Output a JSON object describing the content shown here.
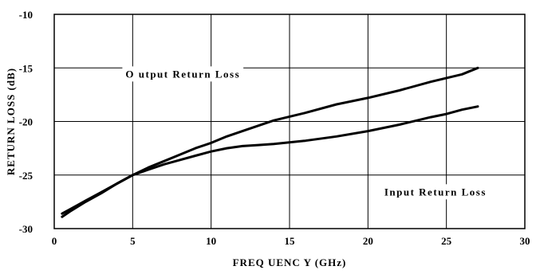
{
  "chart_data": {
    "type": "line",
    "title": "",
    "xlabel": "FREQ UENC Y (GHz)",
    "ylabel": "RETURN LOSS (dB)",
    "xlim": [
      0,
      30
    ],
    "ylim": [
      -30,
      -10
    ],
    "xticks": [
      0,
      5,
      10,
      15,
      20,
      25,
      30
    ],
    "yticks": [
      -30,
      -25,
      -20,
      -15,
      -10
    ],
    "xtick_labels": [
      "0",
      "5",
      "10",
      "15",
      "20",
      "25",
      "30"
    ],
    "ytick_labels": [
      "-30",
      "-25",
      "-20",
      "-15",
      "-10"
    ],
    "grid": true,
    "legend": "none",
    "line_color": "#000000",
    "series": [
      {
        "name": "Output Return Loss",
        "x": [
          0.5,
          1,
          2,
          3,
          4,
          5,
          6,
          7,
          8,
          9,
          10,
          11,
          12,
          14,
          16,
          18,
          20,
          22,
          24,
          26,
          27
        ],
        "y": [
          -28.9,
          -28.4,
          -27.5,
          -26.7,
          -25.8,
          -25.0,
          -24.3,
          -23.7,
          -23.1,
          -22.5,
          -22.0,
          -21.4,
          -20.9,
          -19.9,
          -19.2,
          -18.4,
          -17.8,
          -17.1,
          -16.3,
          -15.6,
          -15.0
        ]
      },
      {
        "name": "Input Return Loss",
        "x": [
          0.5,
          1,
          2,
          3,
          4,
          5,
          6,
          7,
          8,
          9,
          10,
          11,
          12,
          13,
          14,
          16,
          18,
          20,
          22,
          24,
          25,
          26,
          27
        ],
        "y": [
          -28.6,
          -28.2,
          -27.4,
          -26.6,
          -25.8,
          -25.0,
          -24.5,
          -24.0,
          -23.6,
          -23.2,
          -22.8,
          -22.5,
          -22.3,
          -22.2,
          -22.1,
          -21.8,
          -21.4,
          -20.9,
          -20.3,
          -19.6,
          -19.3,
          -18.9,
          -18.6
        ]
      }
    ],
    "annotations": [
      {
        "text": "O utput Return Loss",
        "x": 8.2,
        "y": -15.9
      },
      {
        "text": "Input Return Loss",
        "x": 24.3,
        "y": -26.9
      }
    ]
  }
}
